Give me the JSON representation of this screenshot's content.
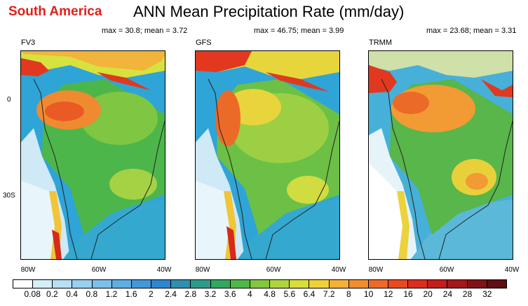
{
  "header": {
    "region_title": "South America",
    "main_title": "ANN Mean Precipitation Rate (mm/day)"
  },
  "panels": [
    {
      "name": "FV3",
      "stats": "max = 30.8; mean = 3.72"
    },
    {
      "name": "GFS",
      "stats": "max = 46.75; mean = 3.99"
    },
    {
      "name": "TRMM",
      "stats": "max = 23.68; mean = 3.31"
    }
  ],
  "axes": {
    "lat_labels": [
      "0",
      "30S"
    ],
    "lon_labels": [
      "80W",
      "60W",
      "40W"
    ]
  },
  "colorbar": {
    "labels": [
      "0.08",
      "0.2",
      "0.4",
      "0.8",
      "1.2",
      "1.6",
      "2",
      "2.4",
      "2.8",
      "3.2",
      "3.6",
      "4",
      "4.8",
      "5.6",
      "6.4",
      "7.2",
      "8",
      "10",
      "12",
      "16",
      "20",
      "24",
      "28",
      "32"
    ],
    "colors": [
      "#ffffff",
      "#d6eef8",
      "#b8e0f4",
      "#98d0ef",
      "#7cbfe9",
      "#5eaee2",
      "#4398d8",
      "#2f86cf",
      "#2f8fb0",
      "#2e9b8a",
      "#33a760",
      "#4fb848",
      "#84c640",
      "#b0d440",
      "#d8dd3c",
      "#f1d13a",
      "#f4b136",
      "#f28d2f",
      "#ee6a28",
      "#e84a22",
      "#da2e1e",
      "#c21e1c",
      "#a3181a",
      "#7f1417",
      "#5e0f12"
    ]
  }
}
